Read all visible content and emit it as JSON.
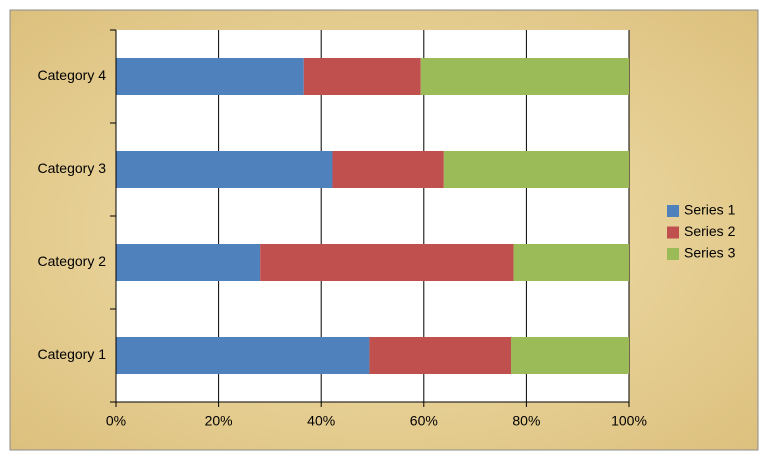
{
  "chart_data": {
    "type": "stacked-bar-horizontal",
    "categories": [
      "Category 1",
      "Category 2",
      "Category 3",
      "Category 4"
    ],
    "series": [
      {
        "name": "Series 1",
        "color": "#4f81bd",
        "values": [
          49.4,
          28.1,
          42.2,
          36.6
        ]
      },
      {
        "name": "Series 2",
        "color": "#c0504d",
        "values": [
          27.6,
          49.4,
          21.7,
          22.8
        ]
      },
      {
        "name": "Series 3",
        "color": "#9bbb59",
        "values": [
          23.0,
          22.5,
          36.1,
          40.6
        ]
      }
    ],
    "xlim": [
      0,
      100
    ],
    "xticks": [
      {
        "value": 0,
        "label": "0%"
      },
      {
        "value": 20,
        "label": "20%"
      },
      {
        "value": 40,
        "label": "40%"
      },
      {
        "value": 60,
        "label": "60%"
      },
      {
        "value": 80,
        "label": "80%"
      },
      {
        "value": 100,
        "label": "100%"
      }
    ],
    "grid": true,
    "legend": "right"
  }
}
